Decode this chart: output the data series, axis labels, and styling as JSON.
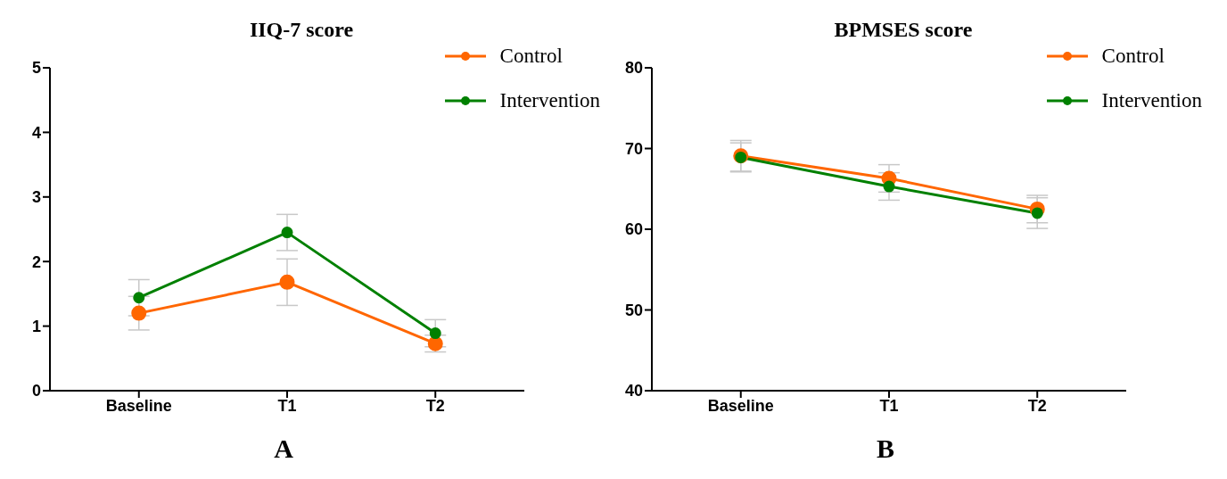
{
  "chart_data": [
    {
      "type": "line",
      "title": "IIQ-7 score",
      "categories": [
        "Baseline",
        "T1",
        "T2"
      ],
      "series": [
        {
          "name": "Control",
          "color": "#ff6600",
          "values": [
            1.2,
            1.68,
            0.73
          ],
          "errors": [
            0.26,
            0.36,
            0.13
          ]
        },
        {
          "name": "Intervention",
          "color": "#008000",
          "values": [
            1.44,
            2.45,
            0.89
          ],
          "errors": [
            0.28,
            0.28,
            0.21
          ]
        }
      ],
      "ylim": [
        0,
        5
      ],
      "yticks": [
        0,
        1,
        2,
        3,
        4,
        5
      ],
      "grid": false,
      "legend": "top right",
      "marker": "circle",
      "line_style": "solid",
      "annotations": [
        "A"
      ]
    },
    {
      "type": "line",
      "title": "BPMSES score",
      "categories": [
        "Baseline",
        "T1",
        "T2"
      ],
      "series": [
        {
          "name": "Control",
          "color": "#ff6600",
          "values": [
            69.1,
            66.3,
            62.5
          ],
          "errors": [
            1.9,
            1.7,
            1.7
          ]
        },
        {
          "name": "Intervention",
          "color": "#008000",
          "values": [
            68.9,
            65.3,
            62.0
          ],
          "errors": [
            1.8,
            1.7,
            1.9
          ]
        }
      ],
      "ylim": [
        40,
        80
      ],
      "yticks": [
        40,
        50,
        60,
        70,
        80
      ],
      "grid": false,
      "legend": "top right",
      "marker": "circle",
      "line_style": "solid",
      "annotations": [
        "B"
      ]
    }
  ]
}
